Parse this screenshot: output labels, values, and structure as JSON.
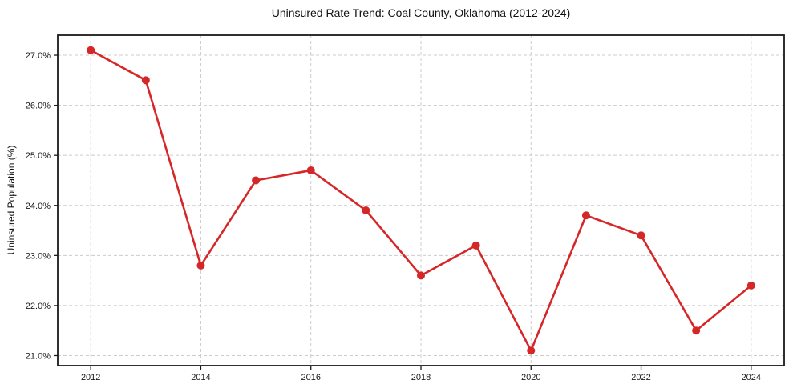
{
  "chart_data": {
    "type": "line",
    "title": "Uninsured Rate Trend: Coal County, Oklahoma (2012-2024)",
    "xlabel": "",
    "ylabel": "Uninsured Population (%)",
    "x": [
      2012,
      2013,
      2014,
      2015,
      2016,
      2017,
      2018,
      2019,
      2020,
      2021,
      2022,
      2023,
      2024
    ],
    "values": [
      27.1,
      26.5,
      22.8,
      24.5,
      24.7,
      23.9,
      22.6,
      23.2,
      21.1,
      23.8,
      23.4,
      21.5,
      22.4
    ],
    "xlim": [
      2011.4,
      2024.6
    ],
    "ylim": [
      20.8,
      27.4
    ],
    "xtick_values": [
      2012,
      2014,
      2016,
      2018,
      2020,
      2022,
      2024
    ],
    "xtick_labels": [
      "2012",
      "2014",
      "2016",
      "2018",
      "2020",
      "2022",
      "2024"
    ],
    "ytick_values": [
      21.0,
      22.0,
      23.0,
      24.0,
      25.0,
      26.0,
      27.0
    ],
    "ytick_labels": [
      "21.0%",
      "22.0%",
      "23.0%",
      "24.0%",
      "25.0%",
      "26.0%",
      "27.0%"
    ],
    "line_color": "#d62728",
    "marker": "circle",
    "marker_radius": 5,
    "grid": true,
    "grid_style": "dashed",
    "grid_color": "#cccccc",
    "legend": "none",
    "background_color": "#ffffff"
  }
}
